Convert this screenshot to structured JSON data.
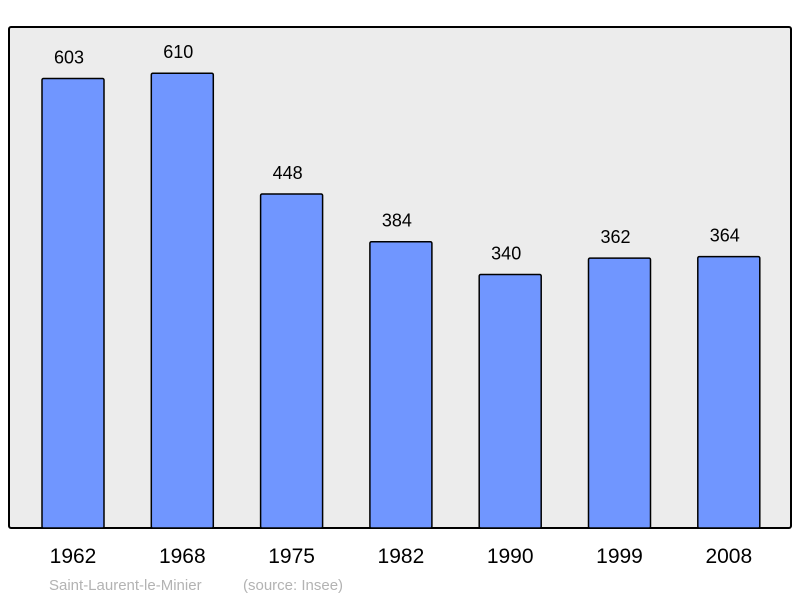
{
  "chart_data": {
    "type": "bar",
    "categories": [
      "1962",
      "1968",
      "1975",
      "1982",
      "1990",
      "1999",
      "2008"
    ],
    "values": [
      603,
      610,
      448,
      384,
      340,
      362,
      364
    ],
    "title": "",
    "xlabel": "",
    "ylabel": "",
    "ylim": [
      0,
      672
    ],
    "grid": false,
    "data_labels": true,
    "colors": {
      "bar": "#7096ff",
      "plot_background": "#ececec",
      "border": "#000000",
      "footer_text": "#b3b3b3"
    }
  },
  "footer": {
    "place": "Saint-Laurent-le-Minier",
    "source": "(source: Insee)"
  }
}
